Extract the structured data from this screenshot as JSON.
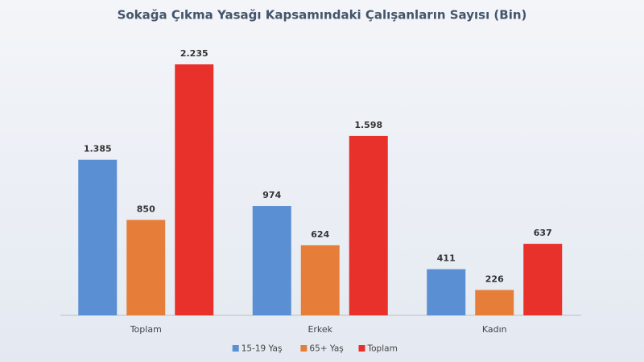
{
  "chart_data": {
    "type": "bar",
    "title": "Sokağa Çıkma Yasağı Kapsamındaki Çalışanların Sayısı (Bin)",
    "categories": [
      "Toplam",
      "Erkek",
      "Kadın"
    ],
    "series": [
      {
        "name": "15-19 Yaş",
        "color": "#5b8fd3",
        "values": [
          1385,
          974,
          411
        ],
        "value_labels": [
          "1.385",
          "974",
          "411"
        ]
      },
      {
        "name": "65+ Yaş",
        "color": "#e67e3a",
        "values": [
          850,
          624,
          226
        ],
        "value_labels": [
          "850",
          "624",
          "226"
        ]
      },
      {
        "name": "Toplam",
        "color": "#e8312a",
        "values": [
          2235,
          1598,
          637
        ],
        "value_labels": [
          "2.235",
          "1.598",
          "637"
        ]
      }
    ],
    "legend": "bottom"
  }
}
